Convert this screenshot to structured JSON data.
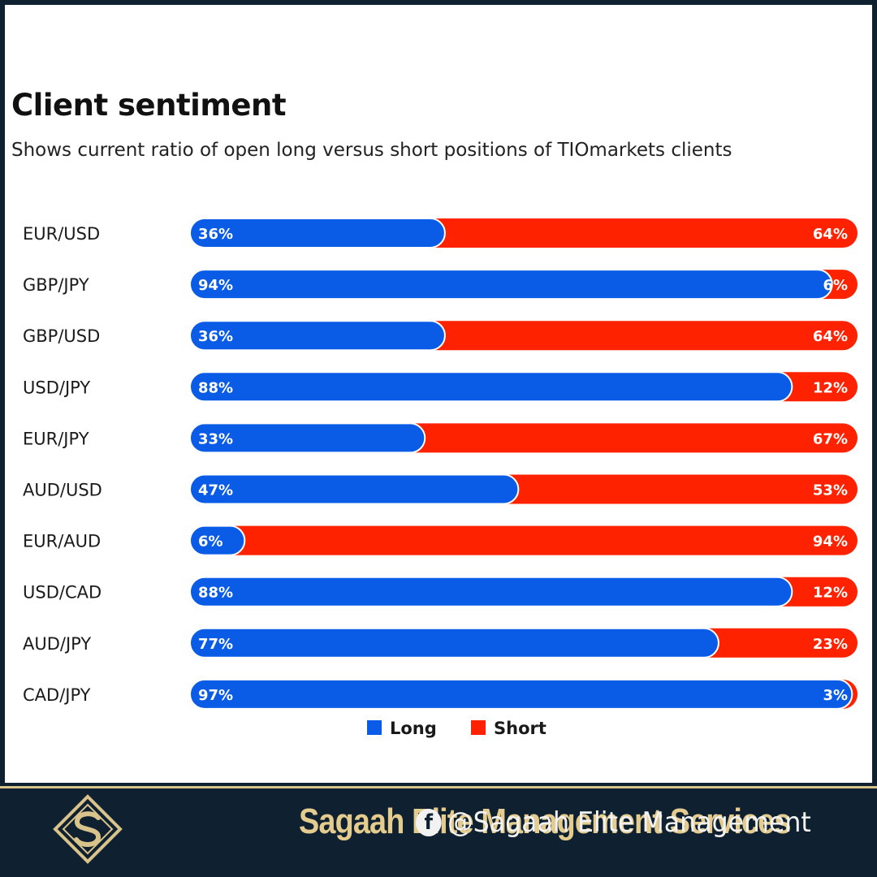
{
  "header": {
    "title": "Client sentiment",
    "subtitle": "Shows current ratio of open long versus short positions of TIOmarkets clients"
  },
  "colors": {
    "long": "#0a5ce6",
    "short": "#ff2200",
    "label": "#1a1a1a"
  },
  "chart_data": {
    "type": "bar",
    "stacked": true,
    "orientation": "horizontal",
    "unit": "%",
    "categories": [
      "EUR/USD",
      "GBP/JPY",
      "GBP/USD",
      "USD/JPY",
      "EUR/JPY",
      "AUD/USD",
      "EUR/AUD",
      "USD/CAD",
      "AUD/JPY",
      "CAD/JPY"
    ],
    "series": [
      {
        "name": "Long",
        "color": "#0a5ce6",
        "values": [
          36,
          94,
          36,
          88,
          33,
          47,
          6,
          88,
          77,
          97
        ]
      },
      {
        "name": "Short",
        "color": "#ff2200",
        "values": [
          64,
          6,
          64,
          12,
          67,
          53,
          94,
          12,
          23,
          3
        ]
      }
    ],
    "xlim": [
      0,
      100
    ],
    "legend_position": "bottom-center",
    "grid": false
  },
  "footer": {
    "brand": "Sagaah Elite Management Services",
    "handle": "@Sagaah Elite Management",
    "social_icon": "facebook-icon",
    "logo_icon": "sagaah-logo-icon",
    "accent": "#d8c48a"
  }
}
